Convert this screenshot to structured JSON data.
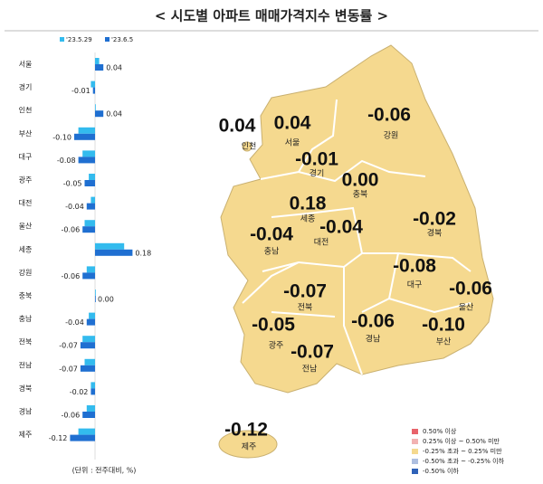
{
  "title": "< 시도별 아파트 매매가격지수 변동률 >",
  "chart_data": {
    "type": "hbar",
    "categories": [
      "서울",
      "경기",
      "인천",
      "부산",
      "대구",
      "광주",
      "대전",
      "울산",
      "세종",
      "강원",
      "충북",
      "충남",
      "전북",
      "전남",
      "경북",
      "경남",
      "제주"
    ],
    "series": [
      {
        "name": "'23.5.29",
        "color": "#33bbee",
        "values": [
          0.02,
          -0.02,
          0.0,
          -0.08,
          -0.06,
          -0.03,
          -0.02,
          -0.05,
          0.14,
          -0.04,
          0.0,
          -0.03,
          -0.06,
          -0.05,
          -0.02,
          -0.04,
          -0.08
        ]
      },
      {
        "name": "'23.6.5",
        "color": "#1f6fd1",
        "values": [
          0.04,
          -0.01,
          0.04,
          -0.1,
          -0.08,
          -0.05,
          -0.04,
          -0.06,
          0.18,
          -0.06,
          0.0,
          -0.04,
          -0.07,
          -0.07,
          -0.02,
          -0.06,
          -0.12
        ],
        "value_labels": [
          "0.04",
          "-0.01",
          "0.04",
          "-0.10",
          "-0.08",
          "-0.05",
          "-0.04",
          "-0.06",
          "0.18",
          "-0.06",
          "0.00",
          "-0.04",
          "-0.07",
          "-0.07",
          "-0.02",
          "-0.06",
          "-0.12"
        ]
      }
    ],
    "note": "(단위 : 전주대비, %)"
  },
  "map": {
    "regions": [
      {
        "name": "인천",
        "value": "0.04"
      },
      {
        "name": "서울",
        "value": "0.04"
      },
      {
        "name": "경기",
        "value": "-0.01"
      },
      {
        "name": "강원",
        "value": "-0.06"
      },
      {
        "name": "충북",
        "value": "0.00"
      },
      {
        "name": "세종",
        "value": "0.18"
      },
      {
        "name": "대전",
        "value": "-0.04"
      },
      {
        "name": "충남",
        "value": "-0.04"
      },
      {
        "name": "경북",
        "value": "-0.02"
      },
      {
        "name": "대구",
        "value": "-0.08"
      },
      {
        "name": "울산",
        "value": "-0.06"
      },
      {
        "name": "전북",
        "value": "-0.07"
      },
      {
        "name": "경남",
        "value": "-0.06"
      },
      {
        "name": "부산",
        "value": "-0.10"
      },
      {
        "name": "광주",
        "value": "-0.05"
      },
      {
        "name": "전남",
        "value": "-0.07"
      },
      {
        "name": "제주",
        "value": "-0.12"
      }
    ],
    "legend": [
      {
        "label": "0.50% 이상",
        "color": "#e8636b"
      },
      {
        "label": "0.25% 이상 ~ 0.50% 미만",
        "color": "#f2b2b2"
      },
      {
        "label": "-0.25% 초과 ~ 0.25% 미만",
        "color": "#f5d98f"
      },
      {
        "label": "-0.50% 초과 ~ -0.25% 이하",
        "color": "#aebfe0"
      },
      {
        "label": "-0.50% 이하",
        "color": "#2f62b8"
      }
    ]
  }
}
